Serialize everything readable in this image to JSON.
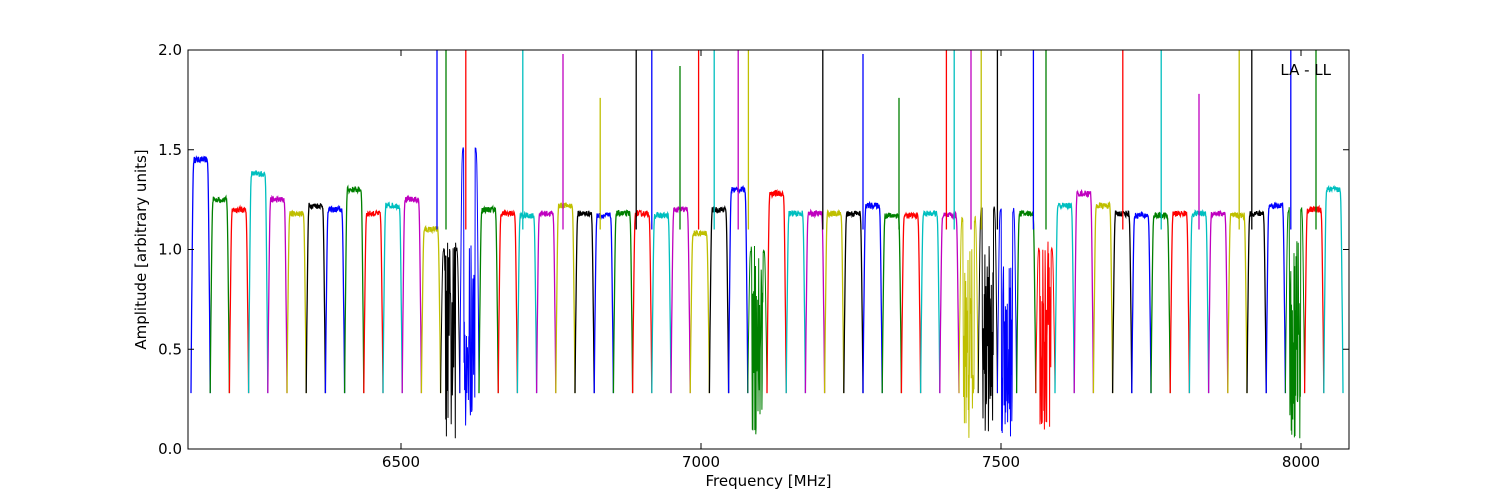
{
  "chart_data": {
    "type": "line",
    "title": "",
    "annotation": "LA - LL",
    "xlabel": "Frequency [MHz]",
    "ylabel": "Amplitude [arbitrary units]",
    "xlim": [
      6145,
      8080
    ],
    "ylim": [
      0.0,
      2.0
    ],
    "x_ticks": [
      6500,
      7000,
      7500,
      8000
    ],
    "y_ticks": [
      0.0,
      0.5,
      1.0,
      1.5,
      2.0
    ],
    "x_tick_labels": [
      "6500",
      "7000",
      "7500",
      "8000"
    ],
    "y_tick_labels": [
      "0.0",
      "0.5",
      "1.0",
      "1.5",
      "2.0"
    ],
    "grid": false,
    "legend": "none",
    "colors": [
      "#0000ff",
      "#008000",
      "#ff0000",
      "#00bfbf",
      "#bf00bf",
      "#bfbf00",
      "#000000"
    ],
    "channel_width_mhz": 32,
    "channel_starts_mhz": [
      6150,
      6182,
      6214,
      6246,
      6278,
      6310,
      6342,
      6374,
      6406,
      6438,
      6470,
      6502,
      6534,
      6566,
      6598,
      6630,
      6662,
      6694,
      6726,
      6758,
      6790,
      6822,
      6854,
      6886,
      6918,
      6950,
      6982,
      7014,
      7046,
      7078,
      7110,
      7142,
      7174,
      7206,
      7238,
      7270,
      7302,
      7334,
      7366,
      7398,
      7430,
      7462,
      7494,
      7526,
      7558,
      7590,
      7622,
      7654,
      7686,
      7718,
      7750,
      7782,
      7814,
      7846,
      7878,
      7910,
      7942,
      7974,
      8006,
      8038
    ],
    "channel_plateau_levels": [
      1.45,
      1.25,
      1.2,
      1.38,
      1.25,
      1.18,
      1.22,
      1.2,
      1.3,
      1.18,
      1.22,
      1.25,
      1.1,
      1.0,
      1.5,
      1.2,
      1.18,
      1.17,
      1.18,
      1.22,
      1.18,
      1.17,
      1.18,
      1.18,
      1.17,
      1.2,
      1.08,
      1.2,
      1.3,
      1.0,
      1.28,
      1.18,
      1.18,
      1.18,
      1.18,
      1.22,
      1.17,
      1.17,
      1.18,
      1.17,
      1.15,
      1.2,
      1.2,
      1.18,
      1.0,
      1.22,
      1.28,
      1.22,
      1.18,
      1.17,
      1.17,
      1.18,
      1.18,
      1.18,
      1.17,
      1.18,
      1.22,
      1.2,
      1.2,
      1.3
    ],
    "noisy_channels_mhz": [
      6566,
      6598,
      7078,
      7430,
      7462,
      7494,
      7558,
      7974
    ],
    "rfi_spikes": [
      {
        "x": 6560,
        "y": 2.0
      },
      {
        "x": 6575,
        "y": 2.0
      },
      {
        "x": 6608,
        "y": 2.0
      },
      {
        "x": 6703,
        "y": 2.0
      },
      {
        "x": 6770,
        "y": 1.98
      },
      {
        "x": 6832,
        "y": 1.76
      },
      {
        "x": 6892,
        "y": 2.0
      },
      {
        "x": 6918,
        "y": 2.0
      },
      {
        "x": 6965,
        "y": 1.92
      },
      {
        "x": 6996,
        "y": 2.0
      },
      {
        "x": 7022,
        "y": 2.0
      },
      {
        "x": 7062,
        "y": 2.0
      },
      {
        "x": 7079,
        "y": 2.0
      },
      {
        "x": 7203,
        "y": 2.0
      },
      {
        "x": 7270,
        "y": 1.98
      },
      {
        "x": 7330,
        "y": 1.76
      },
      {
        "x": 7409,
        "y": 2.0
      },
      {
        "x": 7422,
        "y": 2.0
      },
      {
        "x": 7450,
        "y": 2.0
      },
      {
        "x": 7467,
        "y": 2.0
      },
      {
        "x": 7494,
        "y": 2.0
      },
      {
        "x": 7554,
        "y": 2.0
      },
      {
        "x": 7575,
        "y": 2.0
      },
      {
        "x": 7703,
        "y": 2.0
      },
      {
        "x": 7767,
        "y": 2.0
      },
      {
        "x": 7830,
        "y": 1.78
      },
      {
        "x": 7897,
        "y": 2.0
      },
      {
        "x": 7918,
        "y": 2.0
      },
      {
        "x": 7983,
        "y": 2.0
      },
      {
        "x": 8025,
        "y": 2.0
      }
    ]
  }
}
